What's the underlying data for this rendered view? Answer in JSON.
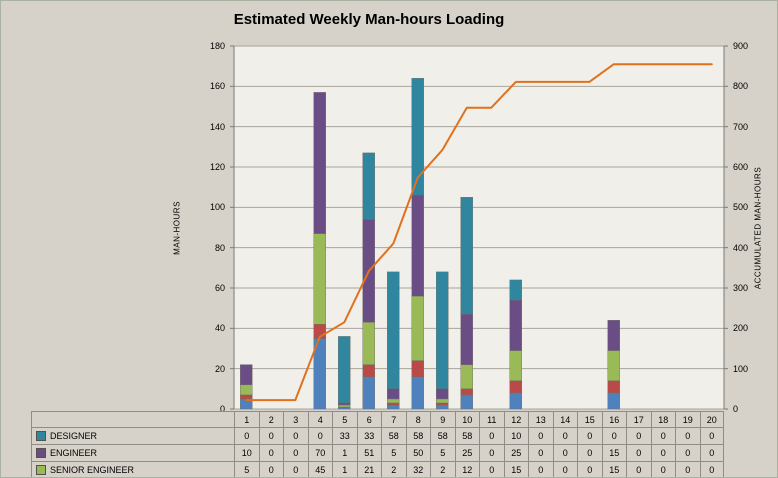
{
  "title": "Estimated Weekly Man-hours Loading",
  "left_axis": {
    "title": "MAN-HOURS",
    "min": 0,
    "max": 180,
    "step": 20
  },
  "right_axis": {
    "title": "ACCUMULATED MAN-HOURS",
    "min": 0,
    "max": 900,
    "step": 100
  },
  "chart_data": {
    "type": "bar",
    "stacked": true,
    "title": "Estimated Weekly Man-hours Loading",
    "xlabel": "",
    "ylabel": "MAN-HOURS",
    "y2label": "ACCUMULATED MAN-HOURS",
    "ylim": [
      0,
      180
    ],
    "y2lim": [
      0,
      900
    ],
    "grid": true,
    "categories": [
      "1",
      "2",
      "3",
      "4",
      "5",
      "6",
      "7",
      "8",
      "9",
      "10",
      "11",
      "12",
      "13",
      "14",
      "15",
      "16",
      "17",
      "18",
      "19",
      "20"
    ],
    "series": [
      {
        "name": "(unlabeled blue segment)",
        "color": "#4f81bd",
        "in_table": false,
        "values": [
          5,
          0,
          0,
          35,
          1,
          16,
          2,
          16,
          2,
          7,
          0,
          8,
          0,
          0,
          0,
          8,
          0,
          0,
          0,
          0
        ]
      },
      {
        "name": "(unlabeled red segment)",
        "color": "#b94a48",
        "in_table": false,
        "values": [
          2,
          0,
          0,
          7,
          0,
          6,
          1,
          8,
          1,
          3,
          0,
          6,
          0,
          0,
          0,
          6,
          0,
          0,
          0,
          0
        ]
      },
      {
        "name": "SENIOR ENGINEER",
        "color": "#9aba58",
        "in_table": true,
        "values": [
          5,
          0,
          0,
          45,
          1,
          21,
          2,
          32,
          2,
          12,
          0,
          15,
          0,
          0,
          0,
          15,
          0,
          0,
          0,
          0
        ]
      },
      {
        "name": "ENGINEER",
        "color": "#6a4d85",
        "in_table": true,
        "values": [
          10,
          0,
          0,
          70,
          1,
          51,
          5,
          50,
          5,
          25,
          0,
          25,
          0,
          0,
          0,
          15,
          0,
          0,
          0,
          0
        ]
      },
      {
        "name": "DESIGNER",
        "color": "#2f869e",
        "in_table": true,
        "values": [
          0,
          0,
          0,
          0,
          33,
          33,
          58,
          58,
          58,
          58,
          0,
          10,
          0,
          0,
          0,
          0,
          0,
          0,
          0,
          0
        ]
      }
    ],
    "line_series": {
      "name": "ACCUMULATED MAN-HOURS",
      "color": "#e2711d",
      "axis": "right",
      "values": [
        22,
        22,
        22,
        179,
        215,
        342,
        410,
        574,
        642,
        747,
        747,
        811,
        811,
        811,
        811,
        855,
        855,
        855,
        855,
        855
      ]
    }
  },
  "table": {
    "visible_rows": [
      "DESIGNER",
      "ENGINEER",
      "SENIOR ENGINEER"
    ]
  },
  "colors": {
    "background": "#d6d2c9",
    "plot_background": "#f1efea",
    "gridline": "#a8a49d",
    "axis_line": "#7d7973",
    "table_border": "#8f8b85"
  }
}
